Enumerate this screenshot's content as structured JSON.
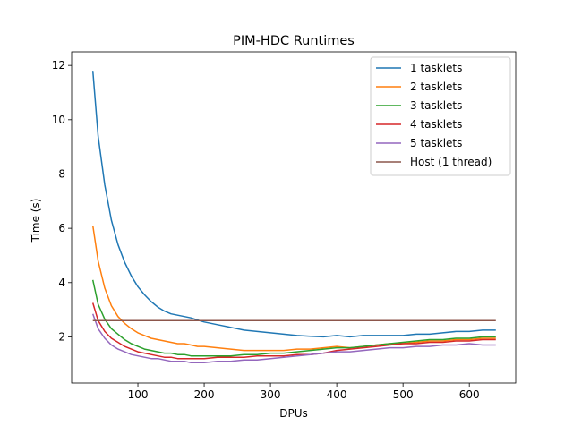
{
  "chart_data": {
    "type": "line",
    "title": "PIM-HDC Runtimes",
    "xlabel": "DPUs",
    "ylabel": "Time (s)",
    "xlim": [
      0,
      670
    ],
    "ylim": [
      0.3,
      12.5
    ],
    "xticks": [
      100,
      200,
      300,
      400,
      500,
      600
    ],
    "yticks": [
      2,
      4,
      6,
      8,
      10,
      12
    ],
    "grid": false,
    "legend_position": "upper right",
    "series": [
      {
        "name": "1 tasklets",
        "color": "#1f77b4",
        "x": [
          32,
          40,
          50,
          60,
          70,
          80,
          90,
          100,
          110,
          120,
          130,
          140,
          150,
          160,
          170,
          180,
          190,
          200,
          220,
          240,
          260,
          280,
          300,
          320,
          340,
          360,
          380,
          400,
          420,
          440,
          460,
          480,
          500,
          520,
          540,
          560,
          580,
          600,
          620,
          640
        ],
        "y": [
          11.8,
          9.4,
          7.6,
          6.3,
          5.4,
          4.75,
          4.25,
          3.85,
          3.55,
          3.3,
          3.1,
          2.95,
          2.85,
          2.8,
          2.75,
          2.7,
          2.62,
          2.55,
          2.45,
          2.35,
          2.25,
          2.2,
          2.15,
          2.1,
          2.05,
          2.02,
          2.0,
          2.05,
          2.0,
          2.05,
          2.05,
          2.05,
          2.05,
          2.1,
          2.1,
          2.15,
          2.2,
          2.2,
          2.25,
          2.25
        ]
      },
      {
        "name": "2 tasklets",
        "color": "#ff7f0e",
        "x": [
          32,
          40,
          50,
          60,
          70,
          80,
          90,
          100,
          110,
          120,
          130,
          140,
          150,
          160,
          170,
          180,
          190,
          200,
          220,
          240,
          260,
          280,
          300,
          320,
          340,
          360,
          380,
          400,
          420,
          440,
          460,
          480,
          500,
          520,
          540,
          560,
          580,
          600,
          620,
          640
        ],
        "y": [
          6.1,
          4.8,
          3.8,
          3.15,
          2.75,
          2.5,
          2.3,
          2.15,
          2.05,
          1.95,
          1.9,
          1.85,
          1.8,
          1.75,
          1.75,
          1.7,
          1.65,
          1.65,
          1.6,
          1.55,
          1.5,
          1.5,
          1.5,
          1.5,
          1.55,
          1.55,
          1.6,
          1.65,
          1.6,
          1.65,
          1.7,
          1.75,
          1.75,
          1.8,
          1.85,
          1.85,
          1.9,
          1.9,
          1.95,
          1.95
        ]
      },
      {
        "name": "3 tasklets",
        "color": "#2ca02c",
        "x": [
          32,
          40,
          50,
          60,
          70,
          80,
          90,
          100,
          110,
          120,
          130,
          140,
          150,
          160,
          170,
          180,
          190,
          200,
          220,
          240,
          260,
          280,
          300,
          320,
          340,
          360,
          380,
          400,
          420,
          440,
          460,
          480,
          500,
          520,
          540,
          560,
          580,
          600,
          620,
          640
        ],
        "y": [
          4.1,
          3.2,
          2.65,
          2.3,
          2.1,
          1.9,
          1.75,
          1.65,
          1.55,
          1.5,
          1.45,
          1.4,
          1.4,
          1.35,
          1.35,
          1.3,
          1.3,
          1.3,
          1.3,
          1.3,
          1.35,
          1.35,
          1.4,
          1.4,
          1.45,
          1.5,
          1.55,
          1.6,
          1.6,
          1.65,
          1.7,
          1.75,
          1.8,
          1.85,
          1.9,
          1.9,
          1.95,
          1.95,
          2.0,
          2.0
        ]
      },
      {
        "name": "4 tasklets",
        "color": "#d62728",
        "x": [
          32,
          40,
          50,
          60,
          70,
          80,
          90,
          100,
          110,
          120,
          130,
          140,
          150,
          160,
          170,
          180,
          190,
          200,
          220,
          240,
          260,
          280,
          300,
          320,
          340,
          360,
          380,
          400,
          420,
          440,
          460,
          480,
          500,
          520,
          540,
          560,
          580,
          600,
          620,
          640
        ],
        "y": [
          3.25,
          2.6,
          2.2,
          1.95,
          1.8,
          1.65,
          1.55,
          1.45,
          1.4,
          1.35,
          1.3,
          1.25,
          1.25,
          1.2,
          1.2,
          1.2,
          1.2,
          1.2,
          1.25,
          1.25,
          1.25,
          1.3,
          1.3,
          1.3,
          1.35,
          1.35,
          1.4,
          1.5,
          1.55,
          1.6,
          1.65,
          1.7,
          1.75,
          1.75,
          1.8,
          1.8,
          1.85,
          1.85,
          1.9,
          1.9
        ]
      },
      {
        "name": "5 tasklets",
        "color": "#9467bd",
        "x": [
          32,
          40,
          50,
          60,
          70,
          80,
          90,
          100,
          110,
          120,
          130,
          140,
          150,
          160,
          170,
          180,
          190,
          200,
          220,
          240,
          260,
          280,
          300,
          320,
          340,
          360,
          380,
          400,
          420,
          440,
          460,
          480,
          500,
          520,
          540,
          560,
          580,
          600,
          620,
          640
        ],
        "y": [
          2.85,
          2.3,
          1.95,
          1.7,
          1.55,
          1.45,
          1.35,
          1.3,
          1.25,
          1.2,
          1.2,
          1.15,
          1.1,
          1.1,
          1.1,
          1.05,
          1.05,
          1.05,
          1.1,
          1.1,
          1.15,
          1.15,
          1.2,
          1.25,
          1.3,
          1.35,
          1.4,
          1.45,
          1.45,
          1.5,
          1.55,
          1.6,
          1.6,
          1.65,
          1.65,
          1.7,
          1.7,
          1.75,
          1.7,
          1.7
        ]
      },
      {
        "name": "Host (1 thread)",
        "color": "#8c564b",
        "x": [
          32,
          640
        ],
        "y": [
          2.6,
          2.6
        ]
      }
    ]
  }
}
